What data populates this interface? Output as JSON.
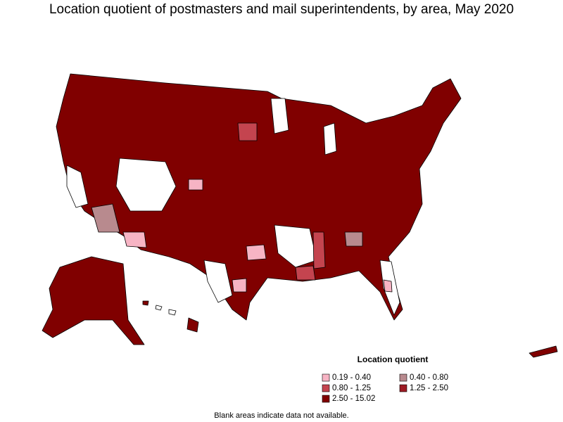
{
  "title": "Location quotient of postmasters and mail superintendents, by area, May 2020",
  "legend": {
    "title": "Location quotient",
    "items": [
      {
        "label": "0.19 - 0.40",
        "color": "#f7b4c4"
      },
      {
        "label": "0.40 - 0.80",
        "color": "#b88a8e"
      },
      {
        "label": "0.80 - 1.25",
        "color": "#c4444f"
      },
      {
        "label": "1.25 - 2.50",
        "color": "#9e1b24"
      },
      {
        "label": "2.50 - 15.02",
        "color": "#800000"
      }
    ]
  },
  "note": "Blank areas indicate data not available."
}
